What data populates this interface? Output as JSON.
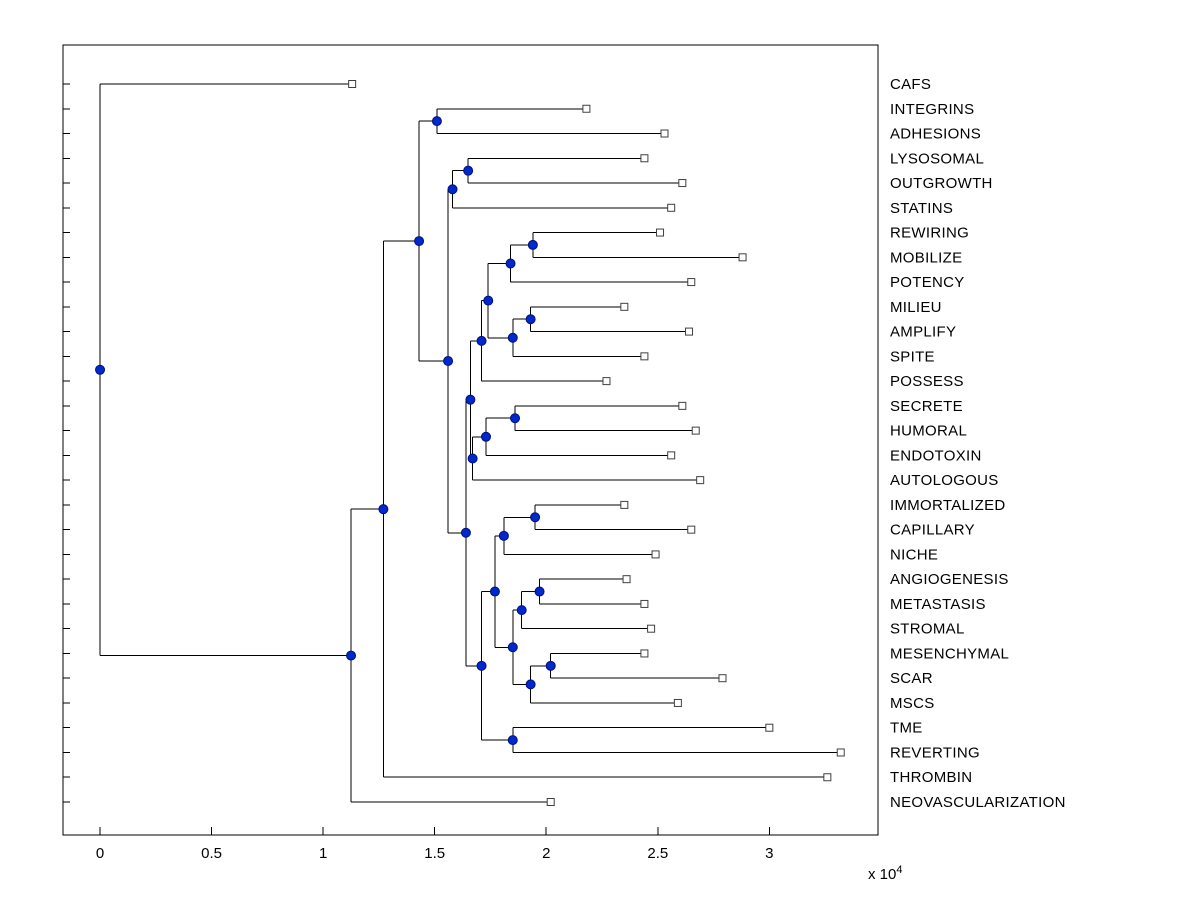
{
  "chart_data": {
    "type": "dendrogram",
    "orientation": "left-to-right",
    "title": "",
    "grid": false,
    "legend": false,
    "x_axis": {
      "xlim": [
        -0.166,
        3.487
      ],
      "unit_multiplier": 10000,
      "multiplier_label": "x 10",
      "multiplier_exponent": "4",
      "ticks": [
        {
          "label": "0",
          "value": 0
        },
        {
          "label": "0.5",
          "value": 0.5
        },
        {
          "label": "1",
          "value": 1
        },
        {
          "label": "1.5",
          "value": 1.5
        },
        {
          "label": "2",
          "value": 2
        },
        {
          "label": "2.5",
          "value": 2.5
        },
        {
          "label": "3",
          "value": 3
        }
      ]
    },
    "colors": {
      "line": "#000000",
      "node_fill": "#0028CC",
      "node_stroke": "#001077",
      "leaf_marker_fill": "#FFFFFF",
      "leaf_marker_stroke": "#404040"
    },
    "leaves": [
      {
        "label": "CAFS",
        "x": 1.13
      },
      {
        "label": "INTEGRINS",
        "x": 2.18
      },
      {
        "label": "ADHESIONS",
        "x": 2.53
      },
      {
        "label": "LYSOSOMAL",
        "x": 2.44
      },
      {
        "label": "OUTGROWTH",
        "x": 2.61
      },
      {
        "label": "STATINS",
        "x": 2.56
      },
      {
        "label": "REWIRING",
        "x": 2.51
      },
      {
        "label": "MOBILIZE",
        "x": 2.88
      },
      {
        "label": "POTENCY",
        "x": 2.65
      },
      {
        "label": "MILIEU",
        "x": 2.35
      },
      {
        "label": "AMPLIFY",
        "x": 2.64
      },
      {
        "label": "SPITE",
        "x": 2.44
      },
      {
        "label": "POSSESS",
        "x": 2.27
      },
      {
        "label": "SECRETE",
        "x": 2.61
      },
      {
        "label": "HUMORAL",
        "x": 2.67
      },
      {
        "label": "ENDOTOXIN",
        "x": 2.56
      },
      {
        "label": "AUTOLOGOUS",
        "x": 2.69
      },
      {
        "label": "IMMORTALIZED",
        "x": 2.35
      },
      {
        "label": "CAPILLARY",
        "x": 2.65
      },
      {
        "label": "NICHE",
        "x": 2.49
      },
      {
        "label": "ANGIOGENESIS",
        "x": 2.36
      },
      {
        "label": "METASTASIS",
        "x": 2.44
      },
      {
        "label": "STROMAL",
        "x": 2.47
      },
      {
        "label": "MESENCHYMAL",
        "x": 2.44
      },
      {
        "label": "SCAR",
        "x": 2.79
      },
      {
        "label": "MSCS",
        "x": 2.59
      },
      {
        "label": "TME",
        "x": 3.0
      },
      {
        "label": "REVERTING",
        "x": 3.32
      },
      {
        "label": "THROMBIN",
        "x": 3.26
      },
      {
        "label": "NEOVASCULARIZATION",
        "x": 2.02
      }
    ],
    "nodes": [
      {
        "id": "N0",
        "x": 0.0,
        "children": [
          "L0",
          "N1"
        ]
      },
      {
        "id": "N1",
        "x": 1.125,
        "children": [
          "N2",
          "L29"
        ]
      },
      {
        "id": "N2",
        "x": 1.27,
        "children": [
          "N3",
          "L28"
        ]
      },
      {
        "id": "N3",
        "x": 1.43,
        "children": [
          "N4",
          "N5"
        ]
      },
      {
        "id": "N4",
        "x": 1.51,
        "children": [
          "L1",
          "L2"
        ]
      },
      {
        "id": "N5",
        "x": 1.56,
        "children": [
          "N6",
          "N8"
        ]
      },
      {
        "id": "N6",
        "x": 1.58,
        "children": [
          "N7",
          "L5"
        ]
      },
      {
        "id": "N7",
        "x": 1.65,
        "children": [
          "L3",
          "L4"
        ]
      },
      {
        "id": "N8",
        "x": 1.64,
        "children": [
          "N9",
          "N19"
        ]
      },
      {
        "id": "N9",
        "x": 1.66,
        "children": [
          "N10",
          "N16"
        ]
      },
      {
        "id": "N10",
        "x": 1.71,
        "children": [
          "N11",
          "L12"
        ]
      },
      {
        "id": "N11",
        "x": 1.74,
        "children": [
          "N12",
          "N14"
        ]
      },
      {
        "id": "N12",
        "x": 1.84,
        "children": [
          "N13",
          "L8"
        ]
      },
      {
        "id": "N13",
        "x": 1.94,
        "children": [
          "L6",
          "L7"
        ]
      },
      {
        "id": "N14",
        "x": 1.85,
        "children": [
          "N15",
          "L11"
        ]
      },
      {
        "id": "N15",
        "x": 1.93,
        "children": [
          "L9",
          "L10"
        ]
      },
      {
        "id": "N16",
        "x": 1.67,
        "children": [
          "N17",
          "L16"
        ]
      },
      {
        "id": "N17",
        "x": 1.73,
        "children": [
          "N18",
          "L15"
        ]
      },
      {
        "id": "N18",
        "x": 1.86,
        "children": [
          "L13",
          "L14"
        ]
      },
      {
        "id": "N19",
        "x": 1.71,
        "children": [
          "N20",
          "N28"
        ]
      },
      {
        "id": "N20",
        "x": 1.77,
        "children": [
          "N21",
          "N23"
        ]
      },
      {
        "id": "N21",
        "x": 1.81,
        "children": [
          "N22",
          "L19"
        ]
      },
      {
        "id": "N22",
        "x": 1.95,
        "children": [
          "L17",
          "L18"
        ]
      },
      {
        "id": "N23",
        "x": 1.85,
        "children": [
          "N24",
          "N26"
        ]
      },
      {
        "id": "N24",
        "x": 1.89,
        "children": [
          "N25",
          "L22"
        ]
      },
      {
        "id": "N25",
        "x": 1.97,
        "children": [
          "L20",
          "L21"
        ]
      },
      {
        "id": "N26",
        "x": 1.93,
        "children": [
          "N27",
          "L25"
        ]
      },
      {
        "id": "N27",
        "x": 2.02,
        "children": [
          "L23",
          "L24"
        ]
      },
      {
        "id": "N28",
        "x": 1.85,
        "children": [
          "L26",
          "L27"
        ]
      }
    ]
  }
}
